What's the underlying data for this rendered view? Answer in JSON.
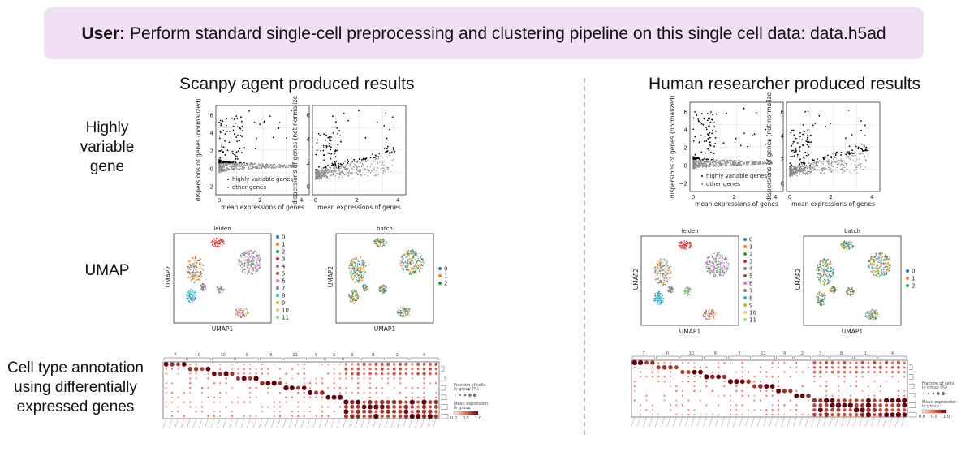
{
  "banner": {
    "prefix": "User:",
    "text": "Perform standard single-cell preprocessing and clustering pipeline on this single cell data: data.h5ad"
  },
  "columns": {
    "agent_title": "Scanpy agent produced results",
    "human_title": "Human researcher produced results"
  },
  "rows": {
    "hvg": [
      "Highly",
      "variable",
      "gene"
    ],
    "umap": "UMAP",
    "annotation": [
      "Cell type annotation",
      "using differentially",
      "expressed genes"
    ]
  },
  "hvg_plots": {
    "left": {
      "ylabel": "dispersions of genes (normalized)",
      "xlabel": "mean expressions of genes",
      "yticks": [
        "6",
        "4",
        "2",
        "0",
        "−2"
      ],
      "xticks": [
        "0",
        "2",
        "4"
      ],
      "legend": [
        "highly variable genes",
        "other genes"
      ]
    },
    "right": {
      "ylabel": "dispersions of genes (not normalize",
      "xlabel": "mean expressions of genes",
      "yticks": [
        "6",
        "4",
        "2",
        "0"
      ],
      "xticks": [
        "0",
        "2",
        "4"
      ]
    }
  },
  "umap_plots": {
    "leiden": {
      "title": "leiden",
      "xlabel": "UMAP1",
      "ylabel": "UMAP2",
      "legend": [
        "0",
        "1",
        "2",
        "3",
        "4",
        "5",
        "6",
        "7",
        "8",
        "9",
        "10",
        "11"
      ]
    },
    "batch": {
      "title": "batch",
      "xlabel": "UMAP1",
      "ylabel": "UMAP2",
      "legend": [
        "0",
        "1",
        "2"
      ]
    }
  },
  "colors": {
    "tab10": [
      "#1f77b4",
      "#ff7f0e",
      "#2ca02c",
      "#d62728",
      "#9467bd",
      "#8c564b",
      "#e377c2",
      "#7f7f7f",
      "#17becf",
      "#bcbd22",
      "#ffbb78",
      "#98df8a"
    ],
    "banner": "#f1dff3",
    "dot_dark": "#67000d"
  },
  "dotplot": {
    "legend_fraction": "Fraction of cells\nin group (%)",
    "legend_mean": "Mean expression\nin group",
    "legend_ticks": [
      "0.0",
      "0.5",
      "1.0"
    ],
    "agent_groups": [
      "7",
      "0",
      "10",
      "6",
      "5",
      "11",
      "9",
      "2",
      "3",
      "8",
      "1",
      "4"
    ],
    "human_groups": [
      "7",
      "0",
      "10",
      "6",
      "5",
      "11",
      "9",
      "2",
      "3",
      "8",
      "1",
      "4"
    ]
  }
}
